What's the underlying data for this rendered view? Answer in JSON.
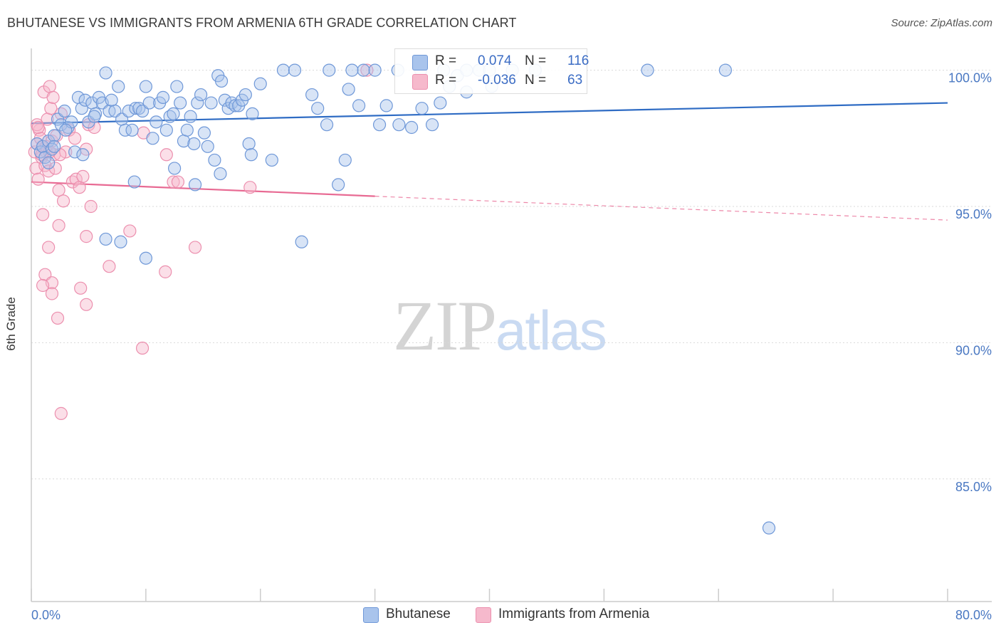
{
  "title": "BHUTANESE VS IMMIGRANTS FROM ARMENIA 6TH GRADE CORRELATION CHART",
  "source": "Source: ZipAtlas.com",
  "watermark": {
    "zip": "ZIP",
    "atlas": "atlas"
  },
  "colors": {
    "blue_fill": "#a9c4ec",
    "blue_stroke": "#6f98d8",
    "blue_line": "#2f6cc4",
    "pink_fill": "#f6b9cc",
    "pink_stroke": "#ec8fae",
    "pink_line": "#e86a93",
    "grid": "#d9d9d9",
    "axis": "#cccccc",
    "tick_text": "#4a78c2"
  },
  "legend": {
    "rows": [
      {
        "r_label": "R =",
        "r_value": "0.074",
        "n_label": "N =",
        "n_value": "116"
      },
      {
        "r_label": "R =",
        "r_value": "-0.036",
        "n_label": "N =",
        "n_value": "63"
      }
    ]
  },
  "chart_data": {
    "type": "scatter",
    "title": "BHUTANESE VS IMMIGRANTS FROM ARMENIA 6TH GRADE CORRELATION CHART",
    "xlabel": "",
    "ylabel": "6th Grade",
    "xlim": [
      0,
      80
    ],
    "ylim": [
      80.5,
      100.8
    ],
    "x_tick_labels": [
      "0.0%",
      "80.0%"
    ],
    "y_ticks": [
      {
        "value": 100,
        "label": "100.0%"
      },
      {
        "value": 95,
        "label": "95.0%"
      },
      {
        "value": 90,
        "label": "90.0%"
      },
      {
        "value": 85,
        "label": "85.0%"
      }
    ],
    "grid": true,
    "legend_position": "top",
    "series": [
      {
        "name": "Bhutanese",
        "trend": {
          "x0": 0,
          "y0": 98.05,
          "x1": 80,
          "y1": 98.8,
          "dashed_from": null
        },
        "points": [
          [
            0.5,
            97.3
          ],
          [
            0.8,
            97.0
          ],
          [
            1.0,
            97.2
          ],
          [
            1.2,
            96.8
          ],
          [
            1.5,
            97.4
          ],
          [
            1.8,
            97.1
          ],
          [
            2.0,
            97.6
          ],
          [
            2.3,
            98.2
          ],
          [
            2.6,
            98.0
          ],
          [
            2.9,
            98.5
          ],
          [
            3.2,
            97.9
          ],
          [
            3.5,
            98.1
          ],
          [
            3.8,
            97.0
          ],
          [
            4.1,
            99.0
          ],
          [
            4.4,
            98.6
          ],
          [
            4.7,
            98.9
          ],
          [
            5.0,
            98.1
          ],
          [
            5.3,
            98.8
          ],
          [
            5.6,
            98.4
          ],
          [
            5.9,
            99.0
          ],
          [
            6.2,
            98.8
          ],
          [
            6.5,
            99.9
          ],
          [
            6.8,
            98.5
          ],
          [
            7.0,
            98.9
          ],
          [
            7.3,
            98.5
          ],
          [
            7.6,
            99.4
          ],
          [
            7.9,
            98.2
          ],
          [
            8.2,
            97.8
          ],
          [
            8.5,
            98.5
          ],
          [
            8.8,
            97.8
          ],
          [
            9.1,
            98.6
          ],
          [
            9.4,
            98.6
          ],
          [
            9.7,
            98.5
          ],
          [
            10.0,
            99.4
          ],
          [
            10.3,
            98.8
          ],
          [
            10.6,
            97.5
          ],
          [
            10.9,
            98.1
          ],
          [
            11.2,
            98.8
          ],
          [
            11.5,
            99.0
          ],
          [
            11.8,
            97.8
          ],
          [
            12.1,
            98.3
          ],
          [
            12.4,
            98.4
          ],
          [
            12.7,
            99.4
          ],
          [
            13.0,
            98.8
          ],
          [
            13.3,
            97.4
          ],
          [
            13.6,
            97.8
          ],
          [
            13.9,
            98.3
          ],
          [
            14.2,
            97.3
          ],
          [
            14.5,
            98.8
          ],
          [
            14.8,
            99.1
          ],
          [
            15.1,
            97.7
          ],
          [
            15.4,
            97.2
          ],
          [
            15.7,
            98.8
          ],
          [
            16.0,
            96.7
          ],
          [
            16.3,
            99.8
          ],
          [
            16.6,
            99.6
          ],
          [
            16.9,
            98.9
          ],
          [
            17.2,
            98.6
          ],
          [
            17.5,
            98.8
          ],
          [
            17.8,
            98.7
          ],
          [
            18.1,
            98.7
          ],
          [
            18.4,
            98.9
          ],
          [
            18.7,
            99.1
          ],
          [
            19.0,
            97.3
          ],
          [
            19.3,
            98.4
          ],
          [
            20.0,
            99.5
          ],
          [
            21.0,
            96.7
          ],
          [
            22.0,
            100.0
          ],
          [
            24.5,
            99.1
          ],
          [
            25.8,
            98.0
          ],
          [
            26.8,
            95.8
          ],
          [
            27.7,
            99.3
          ],
          [
            28.6,
            98.7
          ],
          [
            29.0,
            100.0
          ],
          [
            30.4,
            98.0
          ],
          [
            31.0,
            98.7
          ],
          [
            32.1,
            98.0
          ],
          [
            33.2,
            97.9
          ],
          [
            34.1,
            98.6
          ],
          [
            35.0,
            98.0
          ],
          [
            35.7,
            98.8
          ],
          [
            36.5,
            99.4
          ],
          [
            37.2,
            99.8
          ],
          [
            38.0,
            99.2
          ],
          [
            39.1,
            100.0
          ],
          [
            40.2,
            99.4
          ],
          [
            1.5,
            96.6
          ],
          [
            2.0,
            97.2
          ],
          [
            3.0,
            97.8
          ],
          [
            4.5,
            96.9
          ],
          [
            5.5,
            98.3
          ],
          [
            6.5,
            93.8
          ],
          [
            7.8,
            93.7
          ],
          [
            9.0,
            95.9
          ],
          [
            10.0,
            93.1
          ],
          [
            12.5,
            96.4
          ],
          [
            14.3,
            95.8
          ],
          [
            16.5,
            96.2
          ],
          [
            19.2,
            96.9
          ],
          [
            23.6,
            93.7
          ],
          [
            27.4,
            96.7
          ],
          [
            23.0,
            100.0
          ],
          [
            26.0,
            100.0
          ],
          [
            28.0,
            100.0
          ],
          [
            30.0,
            100.0
          ],
          [
            32.0,
            100.0
          ],
          [
            34.0,
            100.0
          ],
          [
            36.0,
            100.0
          ],
          [
            38.0,
            100.0
          ],
          [
            40.0,
            100.0
          ],
          [
            42.0,
            100.0
          ],
          [
            44.0,
            100.0
          ],
          [
            53.8,
            100.0
          ],
          [
            60.6,
            100.0
          ],
          [
            64.4,
            83.2
          ],
          [
            25.0,
            98.6
          ]
        ]
      },
      {
        "name": "Immigrants from Armenia",
        "trend": {
          "x0": 0,
          "y0": 95.9,
          "x1": 80,
          "y1": 94.5,
          "dashed_from": 30
        },
        "points": [
          [
            0.3,
            97.0
          ],
          [
            0.4,
            96.4
          ],
          [
            0.5,
            97.3
          ],
          [
            0.6,
            96.0
          ],
          [
            0.7,
            97.8
          ],
          [
            0.8,
            97.5
          ],
          [
            0.9,
            96.8
          ],
          [
            1.0,
            97.2
          ],
          [
            1.1,
            99.2
          ],
          [
            1.2,
            96.5
          ],
          [
            1.3,
            97.0
          ],
          [
            1.4,
            98.2
          ],
          [
            1.5,
            96.3
          ],
          [
            1.6,
            99.4
          ],
          [
            1.7,
            98.6
          ],
          [
            1.8,
            97.4
          ],
          [
            1.9,
            99.0
          ],
          [
            2.0,
            96.9
          ],
          [
            2.2,
            97.6
          ],
          [
            2.4,
            95.6
          ],
          [
            2.6,
            98.4
          ],
          [
            2.8,
            95.2
          ],
          [
            3.0,
            97.0
          ],
          [
            3.3,
            97.8
          ],
          [
            3.6,
            95.9
          ],
          [
            3.9,
            96.0
          ],
          [
            4.2,
            95.7
          ],
          [
            4.5,
            96.1
          ],
          [
            4.8,
            97.1
          ],
          [
            5.2,
            95.0
          ],
          [
            1.0,
            94.7
          ],
          [
            1.5,
            93.5
          ],
          [
            2.4,
            94.3
          ],
          [
            4.8,
            93.9
          ],
          [
            1.2,
            92.5
          ],
          [
            1.8,
            92.2
          ],
          [
            1.0,
            92.1
          ],
          [
            1.8,
            91.8
          ],
          [
            4.3,
            92.0
          ],
          [
            4.8,
            91.4
          ],
          [
            2.3,
            90.9
          ],
          [
            6.8,
            92.8
          ],
          [
            8.6,
            94.1
          ],
          [
            11.7,
            92.6
          ],
          [
            14.3,
            93.5
          ],
          [
            9.7,
            89.8
          ],
          [
            2.6,
            87.4
          ],
          [
            11.8,
            96.9
          ],
          [
            12.4,
            95.9
          ],
          [
            12.8,
            95.9
          ],
          [
            19.1,
            95.7
          ],
          [
            29.3,
            100.0
          ],
          [
            9.8,
            97.7
          ],
          [
            3.8,
            97.5
          ],
          [
            0.5,
            98.0
          ],
          [
            0.9,
            96.9
          ],
          [
            1.3,
            97.2
          ],
          [
            5.0,
            98.0
          ],
          [
            5.5,
            97.9
          ],
          [
            2.1,
            96.4
          ],
          [
            1.6,
            97.0
          ],
          [
            0.6,
            97.9
          ],
          [
            2.5,
            96.9
          ]
        ]
      }
    ]
  },
  "bottom_legend": [
    {
      "label": "Bhutanese"
    },
    {
      "label": "Immigrants from Armenia"
    }
  ]
}
